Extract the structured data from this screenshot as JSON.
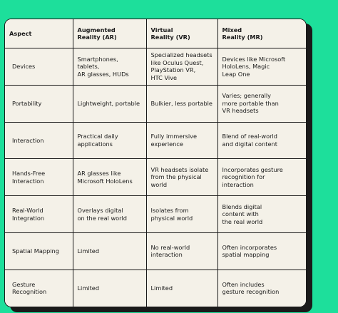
{
  "table": {
    "headers": [
      "Aspect",
      "Augmented\nReality (AR)",
      "Virtual\nReality (VR)",
      "Mixed\nReality (MR)"
    ],
    "rows": [
      [
        "Devices",
        "Smartphones, tablets,\nAR glasses, HUDs",
        "Specialized headsets\nlike Oculus Quest,\nPlayStation VR,\nHTC Vive",
        "Devices like Microsoft\nHoloLens, Magic\nLeap One"
      ],
      [
        "Portability",
        "Lightweight, portable",
        "Bulkier, less portable",
        "Varies; generally\nmore portable than\nVR headsets"
      ],
      [
        "Interaction",
        "Practical daily\napplications",
        "Fully immersive\nexperience",
        "Blend of real-world\nand digital content"
      ],
      [
        "Hands-Free\nInteraction",
        "AR glasses like\nMicrosoft HoloLens",
        "VR headsets isolate\nfrom the physical\nworld",
        "Incorporates gesture\nrecognition for\ninteraction"
      ],
      [
        "Real-World\nIntegration",
        "Overlays digital\non the real world",
        "Isolates from\nphysical world",
        "Blends digital\ncontent with\nthe real world"
      ],
      [
        "Spatial Mapping",
        "Limited",
        "No real-world\ninteraction",
        "Often incorporates\nspatial mapping"
      ],
      [
        "Gesture Recognition",
        "Limited",
        "Limited",
        "Often includes\ngesture recognition"
      ]
    ]
  },
  "colors": {
    "background": "#1ddf9b",
    "card": "#f4f1e8",
    "border": "#1a1a1a"
  }
}
